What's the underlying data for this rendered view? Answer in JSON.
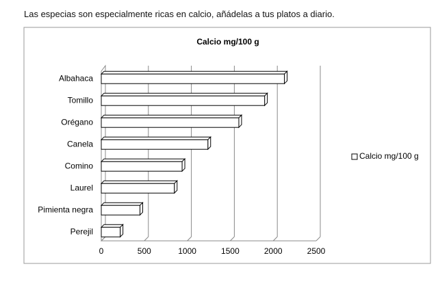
{
  "intro_text": "Las especias son especialmente ricas en calcio, añádelas a tus platos a diario.",
  "chart_data": {
    "type": "bar",
    "orientation": "horizontal",
    "title": "Calcio mg/100 g",
    "categories": [
      "Albahaca",
      "Tomillo",
      "Orégano",
      "Canela",
      "Comino",
      "Laurel",
      "Pimienta negra",
      "Perejil"
    ],
    "series": [
      {
        "name": "Calcio mg/100 g",
        "color": "#ffffff",
        "values": [
          2130,
          1900,
          1600,
          1240,
          940,
          850,
          450,
          220
        ]
      }
    ],
    "xlim": [
      0,
      2500
    ],
    "xticks": [
      0,
      500,
      1000,
      1500,
      2000,
      2500
    ],
    "grid": true,
    "legend": "right"
  }
}
